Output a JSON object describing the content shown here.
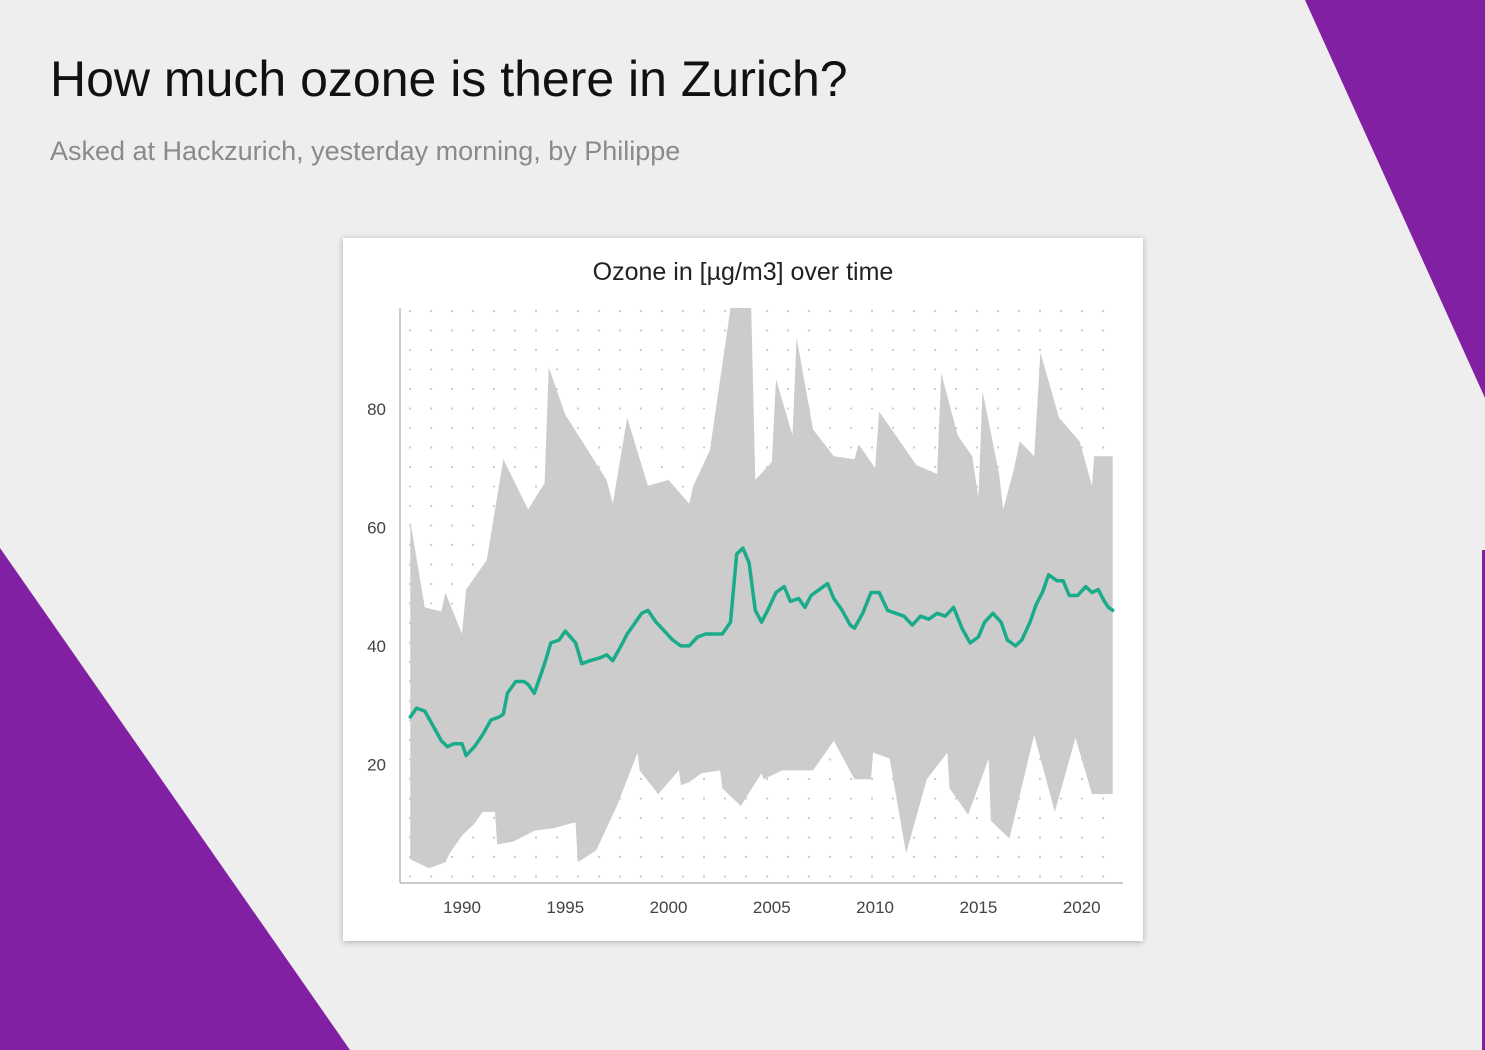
{
  "page": {
    "title": "How much ozone is there in Zurich?",
    "subtitle": "Asked at Hackzurich, yesterday morning, by Philippe",
    "accent_color": "#8120a3",
    "background_color": "#eeeeee"
  },
  "chart_data": {
    "type": "area",
    "title": "Ozone in [µg/m3] over time",
    "xlabel": "",
    "ylabel": "",
    "xlim": [
      1987,
      2022
    ],
    "ylim": [
      0,
      97
    ],
    "x_ticks": [
      1990,
      1995,
      2000,
      2005,
      2010,
      2015,
      2020
    ],
    "y_ticks": [
      20,
      40,
      60,
      80
    ],
    "grid": "dotted",
    "legend": "none",
    "band": {
      "color": "#cccccc",
      "upper": [
        [
          1987.5,
          61
        ],
        [
          1988.2,
          46.5
        ],
        [
          1989.0,
          45.8
        ],
        [
          1989.2,
          49
        ],
        [
          1990.0,
          42
        ],
        [
          1990.2,
          49.5
        ],
        [
          1991.2,
          54.5
        ],
        [
          1992.0,
          71.5
        ],
        [
          1993.2,
          63
        ],
        [
          1994.0,
          67.5
        ],
        [
          1994.2,
          87
        ],
        [
          1995.0,
          79
        ],
        [
          1997.0,
          68
        ],
        [
          1997.3,
          64
        ],
        [
          1998.0,
          78.5
        ],
        [
          1999.0,
          67
        ],
        [
          2000.0,
          68
        ],
        [
          2001.0,
          64
        ],
        [
          2001.2,
          67
        ],
        [
          2002.0,
          73
        ],
        [
          2003.0,
          97
        ],
        [
          2004.0,
          97
        ],
        [
          2004.2,
          68
        ],
        [
          2005.0,
          71
        ],
        [
          2005.2,
          85
        ],
        [
          2006.0,
          75.5
        ],
        [
          2006.2,
          92
        ],
        [
          2007.0,
          76.5
        ],
        [
          2008.0,
          72
        ],
        [
          2009.0,
          71.5
        ],
        [
          2009.2,
          74
        ],
        [
          2010.0,
          70
        ],
        [
          2010.2,
          79.5
        ],
        [
          2011.0,
          75.5
        ],
        [
          2012.0,
          70.5
        ],
        [
          2013.0,
          69
        ],
        [
          2013.2,
          86
        ],
        [
          2014.0,
          75.5
        ],
        [
          2014.7,
          72
        ],
        [
          2015.0,
          65
        ],
        [
          2015.2,
          83
        ],
        [
          2016.0,
          69
        ],
        [
          2016.2,
          63
        ],
        [
          2016.7,
          69.5
        ],
        [
          2017.0,
          74.5
        ],
        [
          2017.7,
          72
        ],
        [
          2018.0,
          89.5
        ],
        [
          2018.9,
          78.5
        ],
        [
          2019.9,
          74.5
        ],
        [
          2020.5,
          67
        ],
        [
          2020.6,
          72
        ],
        [
          2021.5,
          72
        ]
      ],
      "lower": [
        [
          1987.5,
          4
        ],
        [
          1988.4,
          2.5
        ],
        [
          1989.2,
          3.5
        ],
        [
          1989.4,
          5
        ],
        [
          1990.0,
          8
        ],
        [
          1990.6,
          10
        ],
        [
          1991.0,
          12
        ],
        [
          1991.6,
          12
        ],
        [
          1991.7,
          6.5
        ],
        [
          1992.5,
          7
        ],
        [
          1993.5,
          8.8
        ],
        [
          1994.5,
          9.3
        ],
        [
          1995.2,
          10
        ],
        [
          1995.5,
          10.2
        ],
        [
          1995.6,
          3.5
        ],
        [
          1996.5,
          5.5
        ],
        [
          1997.5,
          13
        ],
        [
          1998.5,
          22
        ],
        [
          1998.6,
          19
        ],
        [
          1999.5,
          15
        ],
        [
          2000.5,
          19
        ],
        [
          2000.6,
          16.5
        ],
        [
          2001.0,
          17
        ],
        [
          2001.6,
          18.5
        ],
        [
          2002.5,
          19
        ],
        [
          2002.6,
          16
        ],
        [
          2003.5,
          13
        ],
        [
          2004.5,
          18.5
        ],
        [
          2004.6,
          17.5
        ],
        [
          2005.5,
          19
        ],
        [
          2006.5,
          19
        ],
        [
          2007.0,
          19
        ],
        [
          2008.0,
          24
        ],
        [
          2009.0,
          17.5
        ],
        [
          2009.8,
          17.5
        ],
        [
          2009.9,
          22
        ],
        [
          2010.7,
          21
        ],
        [
          2011.5,
          5
        ],
        [
          2012.5,
          17.5
        ],
        [
          2013.5,
          22
        ],
        [
          2013.6,
          16
        ],
        [
          2014.5,
          11.5
        ],
        [
          2015.5,
          21
        ],
        [
          2015.6,
          10.5
        ],
        [
          2016.5,
          7.5
        ],
        [
          2017.7,
          25
        ],
        [
          2018.7,
          12
        ],
        [
          2019.7,
          24.5
        ],
        [
          2020.5,
          15
        ],
        [
          2021.5,
          15
        ]
      ]
    },
    "series": [
      {
        "color": "#1aab8a",
        "points": [
          [
            1987.5,
            28
          ],
          [
            1987.8,
            29.5
          ],
          [
            1988.2,
            29
          ],
          [
            1988.6,
            26.5
          ],
          [
            1989.0,
            24
          ],
          [
            1989.3,
            23
          ],
          [
            1989.6,
            23.5
          ],
          [
            1990.0,
            23.5
          ],
          [
            1990.2,
            21.5
          ],
          [
            1990.6,
            23
          ],
          [
            1991.0,
            25
          ],
          [
            1991.4,
            27.5
          ],
          [
            1991.8,
            28
          ],
          [
            1992.0,
            28.5
          ],
          [
            1992.2,
            32
          ],
          [
            1992.6,
            34
          ],
          [
            1993.0,
            34
          ],
          [
            1993.2,
            33.5
          ],
          [
            1993.5,
            32
          ],
          [
            1993.8,
            35
          ],
          [
            1994.0,
            37
          ],
          [
            1994.3,
            40.5
          ],
          [
            1994.7,
            41
          ],
          [
            1995.0,
            42.5
          ],
          [
            1995.5,
            40.5
          ],
          [
            1995.8,
            37
          ],
          [
            1996.2,
            37.5
          ],
          [
            1996.7,
            38
          ],
          [
            1997.0,
            38.5
          ],
          [
            1997.3,
            37.5
          ],
          [
            1997.7,
            40
          ],
          [
            1998.0,
            42
          ],
          [
            1998.4,
            44
          ],
          [
            1998.7,
            45.5
          ],
          [
            1999.0,
            46
          ],
          [
            1999.4,
            44
          ],
          [
            1999.8,
            42.5
          ],
          [
            2000.2,
            41
          ],
          [
            2000.6,
            40
          ],
          [
            2001.0,
            40
          ],
          [
            2001.4,
            41.5
          ],
          [
            2001.8,
            42
          ],
          [
            2002.2,
            42
          ],
          [
            2002.6,
            42
          ],
          [
            2003.0,
            44
          ],
          [
            2003.3,
            55.5
          ],
          [
            2003.6,
            56.5
          ],
          [
            2003.9,
            54
          ],
          [
            2004.2,
            46
          ],
          [
            2004.5,
            44
          ],
          [
            2004.8,
            46
          ],
          [
            2005.2,
            49
          ],
          [
            2005.6,
            50
          ],
          [
            2005.9,
            47.5
          ],
          [
            2006.3,
            48
          ],
          [
            2006.6,
            46.5
          ],
          [
            2006.9,
            48.5
          ],
          [
            2007.3,
            49.5
          ],
          [
            2007.7,
            50.5
          ],
          [
            2008.0,
            48
          ],
          [
            2008.4,
            46
          ],
          [
            2008.8,
            43.5
          ],
          [
            2009.0,
            43
          ],
          [
            2009.4,
            45.5
          ],
          [
            2009.8,
            49
          ],
          [
            2010.2,
            49
          ],
          [
            2010.6,
            46
          ],
          [
            2011.0,
            45.5
          ],
          [
            2011.4,
            45
          ],
          [
            2011.8,
            43.5
          ],
          [
            2012.2,
            45
          ],
          [
            2012.6,
            44.5
          ],
          [
            2013.0,
            45.5
          ],
          [
            2013.4,
            45
          ],
          [
            2013.8,
            46.5
          ],
          [
            2014.2,
            43
          ],
          [
            2014.6,
            40.5
          ],
          [
            2015.0,
            41.5
          ],
          [
            2015.3,
            44
          ],
          [
            2015.7,
            45.5
          ],
          [
            2016.1,
            44
          ],
          [
            2016.4,
            41
          ],
          [
            2016.8,
            40
          ],
          [
            2017.1,
            41
          ],
          [
            2017.5,
            44
          ],
          [
            2017.8,
            47
          ],
          [
            2018.1,
            49
          ],
          [
            2018.4,
            52
          ],
          [
            2018.8,
            51
          ],
          [
            2019.1,
            51
          ],
          [
            2019.4,
            48.5
          ],
          [
            2019.8,
            48.5
          ],
          [
            2020.2,
            50
          ],
          [
            2020.5,
            49
          ],
          [
            2020.8,
            49.5
          ],
          [
            2021.1,
            47.5
          ],
          [
            2021.3,
            46.5
          ],
          [
            2021.5,
            46
          ]
        ]
      }
    ]
  }
}
